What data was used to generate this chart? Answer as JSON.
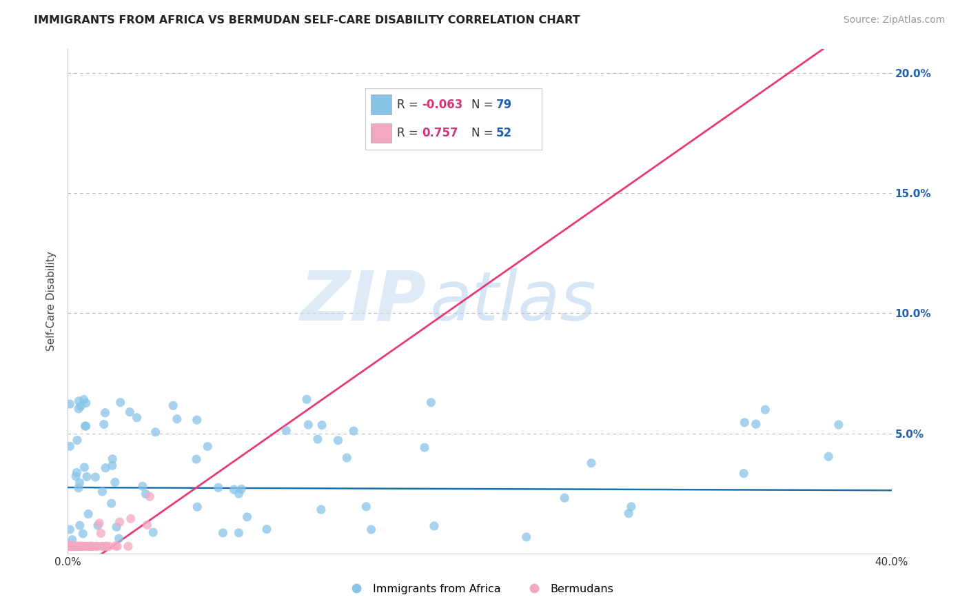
{
  "title": "IMMIGRANTS FROM AFRICA VS BERMUDAN SELF-CARE DISABILITY CORRELATION CHART",
  "source": "Source: ZipAtlas.com",
  "ylabel": "Self-Care Disability",
  "watermark_zip": "ZIP",
  "watermark_atlas": "atlas",
  "xlim": [
    0.0,
    0.42
  ],
  "ylim": [
    -0.005,
    0.215
  ],
  "plot_xlim": [
    0.0,
    0.4
  ],
  "plot_ylim": [
    0.0,
    0.21
  ],
  "blue_R": -0.063,
  "blue_N": 79,
  "pink_R": 0.757,
  "pink_N": 52,
  "blue_color": "#88c4e8",
  "pink_color": "#f4a8c0",
  "blue_line_color": "#1a6fad",
  "pink_line_color": "#e83878",
  "pink_dash_color": "#f0b0c8",
  "grid_color": "#bbbbbb",
  "title_color": "#222222",
  "source_color": "#999999",
  "r_value_color": "#d03878",
  "n_value_color": "#2060b0",
  "axis_label_color": "#444444",
  "right_ytick_color": "#2060b0",
  "legend_border_color": "#cccccc",
  "blue_line_intercept": 0.0275,
  "blue_line_slope": -0.003,
  "pink_line_intercept": -0.01,
  "pink_line_slope": 0.6
}
